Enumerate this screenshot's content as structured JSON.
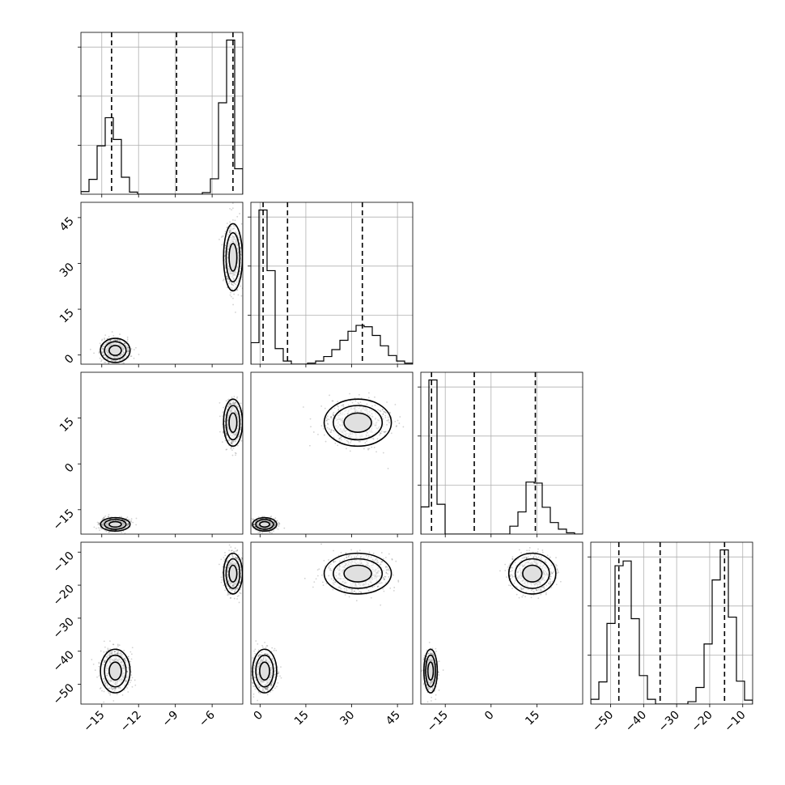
{
  "chart_data": {
    "type": "corner",
    "grid": true,
    "parameters": [
      {
        "range": [
          -16.7,
          -3.5
        ],
        "ticks": [
          -15,
          -12,
          -9,
          -6
        ],
        "tick_labels": [
          "−15",
          "−12",
          "−9",
          "−6"
        ],
        "quantiles": [
          -14.2,
          -8.9,
          -4.3
        ],
        "modes": [
          {
            "mean": -13.9,
            "sd": 0.55,
            "weight": 0.5
          },
          {
            "mean": -4.3,
            "sd": 0.35,
            "weight": 0.5
          }
        ]
      },
      {
        "range": [
          -3,
          50
        ],
        "ticks": [
          0,
          15,
          30,
          45
        ],
        "tick_labels": [
          "0",
          "15",
          "30",
          "45"
        ],
        "quantiles": [
          1.0,
          9.0,
          33.5
        ],
        "modes": [
          {
            "mean": 1.5,
            "sd": 1.8,
            "weight": 0.5
          },
          {
            "mean": 32.0,
            "sd": 5.0,
            "weight": 0.5
          }
        ]
      },
      {
        "range": [
          -23,
          30
        ],
        "ticks": [
          -15,
          0,
          15
        ],
        "tick_labels": [
          "−15",
          "0",
          "15"
        ],
        "quantiles": [
          -19.5,
          -5.5,
          14.5
        ],
        "modes": [
          {
            "mean": -19.8,
            "sd": 1.0,
            "weight": 0.5
          },
          {
            "mean": 13.5,
            "sd": 3.5,
            "weight": 0.5
          }
        ]
      },
      {
        "range": [
          -56,
          -7
        ],
        "ticks": [
          -50,
          -40,
          -30,
          -20,
          -10
        ],
        "tick_labels": [
          "−50",
          "−40",
          "−30",
          "−20",
          "−10"
        ],
        "quantiles": [
          -47.5,
          -35.0,
          -15.5
        ],
        "modes": [
          {
            "mean": -46.0,
            "sd": 3.0,
            "weight": 0.5
          },
          {
            "mean": -16.5,
            "sd": 2.8,
            "weight": 0.5
          }
        ]
      }
    ],
    "histograms": [
      {
        "edges": [
          -16.7,
          -16.04,
          -15.38,
          -14.72,
          -14.06,
          -13.4,
          -12.74,
          -12.08,
          -11.42,
          -10.76,
          -10.1,
          -9.44,
          -8.78,
          -8.12,
          -7.46,
          -6.8,
          -6.14,
          -5.48,
          -4.82,
          -4.16,
          -3.5
        ],
        "counts": [
          0.5,
          2.8,
          9.1,
          14.4,
          10.3,
          3.2,
          0.4,
          0,
          0,
          0,
          0,
          0,
          0,
          0,
          0,
          0.3,
          2.9,
          17.2,
          29.0,
          4.8
        ]
      },
      {
        "edges": [
          -3,
          -0.35,
          2.3,
          4.95,
          7.6,
          10.25,
          12.9,
          15.55,
          18.2,
          20.85,
          23.5,
          26.15,
          28.8,
          31.45,
          34.1,
          36.75,
          39.4,
          42.05,
          44.7,
          47.35,
          50
        ],
        "counts": [
          6.2,
          44.5,
          27.0,
          4.5,
          0.9,
          0,
          0,
          0.3,
          0.9,
          2.2,
          4.2,
          6.9,
          9.5,
          11.2,
          10.8,
          8.3,
          5.3,
          2.5,
          0.9,
          0.3
        ]
      },
      {
        "edges": [
          -23,
          -20.35,
          -17.7,
          -15.05,
          -12.4,
          -9.75,
          -7.1,
          -4.45,
          -1.8,
          0.85,
          3.5,
          6.15,
          8.8,
          11.45,
          14.1,
          16.75,
          19.4,
          22.05,
          24.7,
          27.35,
          30
        ],
        "counts": [
          8.2,
          46.5,
          9.0,
          0,
          0,
          0,
          0,
          0,
          0,
          0,
          0,
          2.4,
          6.7,
          15.7,
          15.4,
          8.1,
          3.5,
          1.5,
          0.4,
          0
        ]
      },
      {
        "edges": [
          -56,
          -53.55,
          -51.1,
          -48.65,
          -46.2,
          -43.75,
          -41.3,
          -38.85,
          -36.4,
          -33.95,
          -31.5,
          -29.05,
          -26.6,
          -24.15,
          -21.7,
          -19.25,
          -16.8,
          -14.35,
          -11.9,
          -9.45,
          -7
        ],
        "counts": [
          0.6,
          2.8,
          10.2,
          17.5,
          18.1,
          10.8,
          3.6,
          0.6,
          0,
          0,
          0,
          0,
          0.3,
          2.1,
          7.6,
          15.7,
          19.5,
          11.0,
          2.9,
          0.5
        ]
      }
    ]
  }
}
